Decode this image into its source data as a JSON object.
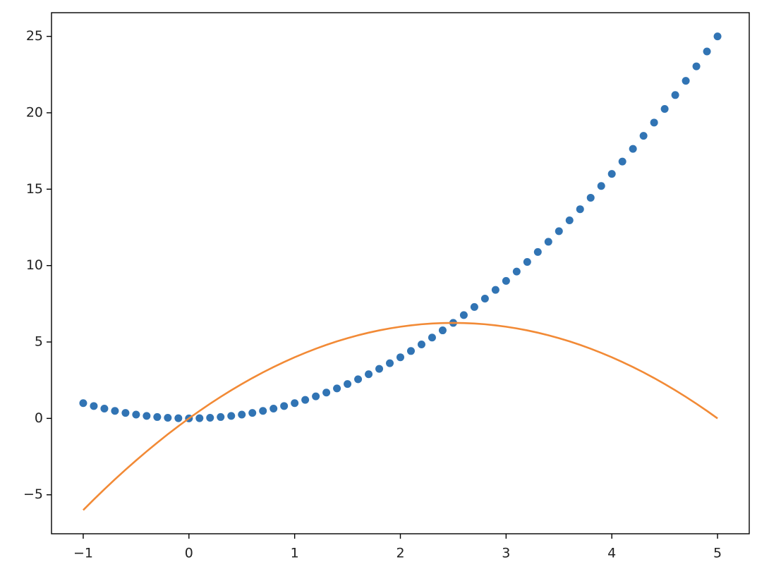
{
  "chart_data": {
    "type": "line",
    "x": [
      -1,
      -0.9,
      -0.8,
      -0.7,
      -0.6,
      -0.5,
      -0.4,
      -0.3,
      -0.2,
      -0.1,
      0,
      0.1,
      0.2,
      0.3,
      0.4,
      0.5,
      0.6,
      0.7,
      0.8,
      0.9,
      1,
      1.1,
      1.2,
      1.3,
      1.4,
      1.5,
      1.6,
      1.7,
      1.8,
      1.9,
      2,
      2.1,
      2.2,
      2.3,
      2.4,
      2.5,
      2.6,
      2.7,
      2.8,
      2.9,
      3,
      3.1,
      3.2,
      3.3,
      3.4,
      3.5,
      3.6,
      3.7,
      3.8,
      3.9,
      4,
      4.1,
      4.2,
      4.3,
      4.4,
      4.5,
      4.6,
      4.7,
      4.8,
      4.9,
      5
    ],
    "series": [
      {
        "mode": "markers",
        "color": "#3174b4",
        "values": [
          1,
          0.81,
          0.64,
          0.49,
          0.36,
          0.25,
          0.16,
          0.09,
          0.04,
          0.01,
          0,
          0.01,
          0.04,
          0.09,
          0.16,
          0.25,
          0.36,
          0.49,
          0.64,
          0.81,
          1,
          1.21,
          1.44,
          1.69,
          1.96,
          2.25,
          2.56,
          2.89,
          3.24,
          3.61,
          4,
          4.41,
          4.84,
          5.29,
          5.76,
          6.25,
          6.76,
          7.29,
          7.84,
          8.41,
          9,
          9.61,
          10.24,
          10.89,
          11.56,
          12.25,
          12.96,
          13.69,
          14.44,
          15.21,
          16,
          16.81,
          17.64,
          18.49,
          19.36,
          20.25,
          21.16,
          22.09,
          23.04,
          24.01,
          25
        ]
      },
      {
        "mode": "line",
        "color": "#f28a36",
        "values": [
          -6,
          -5.31,
          -4.64,
          -3.99,
          -3.36,
          -2.75,
          -2.16,
          -1.59,
          -1.04,
          -0.51,
          0,
          0.49,
          0.96,
          1.41,
          1.84,
          2.25,
          2.64,
          3.01,
          3.36,
          3.69,
          4,
          4.29,
          4.56,
          4.81,
          5.04,
          5.25,
          5.44,
          5.61,
          5.76,
          5.89,
          6,
          6.09,
          6.16,
          6.21,
          6.24,
          6.25,
          6.24,
          6.21,
          6.16,
          6.09,
          6,
          5.89,
          5.76,
          5.61,
          5.44,
          5.25,
          5.04,
          4.81,
          4.56,
          4.29,
          4,
          3.69,
          3.36,
          3.01,
          2.64,
          2.25,
          1.84,
          1.41,
          0.96,
          0.49,
          0
        ]
      }
    ],
    "xlim": [
      -1.3,
      5.3
    ],
    "ylim": [
      -7.55,
      26.55
    ],
    "xticks": [
      {
        "value": -1,
        "label": "−1"
      },
      0,
      1,
      2,
      3,
      4,
      5
    ],
    "yticks": [
      {
        "value": -5,
        "label": "−5"
      },
      0,
      5,
      10,
      15,
      20,
      25
    ]
  }
}
